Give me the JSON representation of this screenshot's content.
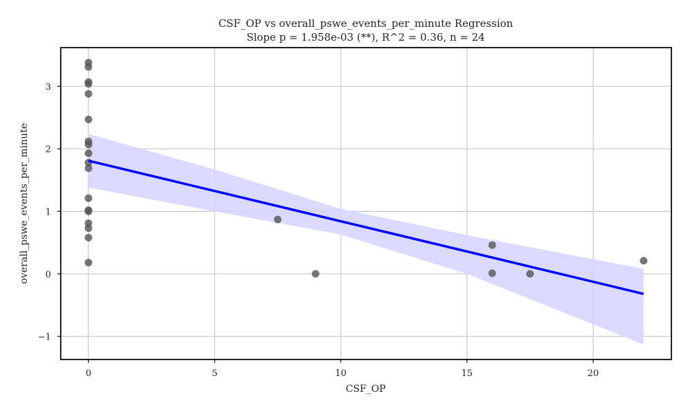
{
  "chart_data": {
    "type": "scatter",
    "title": "CSF_OP vs overall_pswe_events_per_minute Regression",
    "subtitle": "Slope p = 1.958e-03 (**), R^2 = 0.36, n = 24",
    "xlabel": "CSF_OP",
    "ylabel": "overall_pswe_events_per_minute",
    "xlim": [
      -1.1,
      23.1
    ],
    "ylim": [
      -1.37,
      3.62
    ],
    "xticks": [
      0,
      5,
      10,
      15,
      20
    ],
    "yticks": [
      -1,
      0,
      1,
      2,
      3
    ],
    "xtick_labels": [
      "0",
      "5",
      "10",
      "15",
      "20"
    ],
    "ytick_labels": [
      "−1",
      "0",
      "1",
      "2",
      "3"
    ],
    "grid": true,
    "points": [
      {
        "x": 0,
        "y": 3.38
      },
      {
        "x": 0,
        "y": 3.31
      },
      {
        "x": 0,
        "y": 3.07
      },
      {
        "x": 0,
        "y": 3.04
      },
      {
        "x": 0,
        "y": 2.88
      },
      {
        "x": 0,
        "y": 2.47
      },
      {
        "x": 0,
        "y": 2.12
      },
      {
        "x": 0,
        "y": 2.07
      },
      {
        "x": 0,
        "y": 1.93
      },
      {
        "x": 0,
        "y": 1.78
      },
      {
        "x": 0,
        "y": 1.69
      },
      {
        "x": 0,
        "y": 1.21
      },
      {
        "x": 0,
        "y": 1.02
      },
      {
        "x": 0,
        "y": 1.0
      },
      {
        "x": 0,
        "y": 0.81
      },
      {
        "x": 0,
        "y": 0.73
      },
      {
        "x": 0,
        "y": 0.58
      },
      {
        "x": 0,
        "y": 0.18
      },
      {
        "x": 7.5,
        "y": 0.87
      },
      {
        "x": 9.0,
        "y": 0.0
      },
      {
        "x": 16.0,
        "y": 0.46
      },
      {
        "x": 16.0,
        "y": 0.01
      },
      {
        "x": 17.5,
        "y": 0.0
      },
      {
        "x": 22.0,
        "y": 0.21
      }
    ],
    "regression": {
      "x": [
        0,
        22
      ],
      "y": [
        1.81,
        -0.32
      ]
    },
    "confidence_band": {
      "x": [
        0,
        5,
        10,
        15,
        22
      ],
      "upper": [
        2.24,
        1.67,
        1.04,
        0.62,
        0.08
      ],
      "lower": [
        1.38,
        1.0,
        0.63,
        0.0,
        -1.13
      ]
    },
    "colors": {
      "points": "#555555",
      "line": "#0000ff",
      "band": "#d6d6ff",
      "grid": "#cccccc",
      "axes": "#222222"
    }
  }
}
